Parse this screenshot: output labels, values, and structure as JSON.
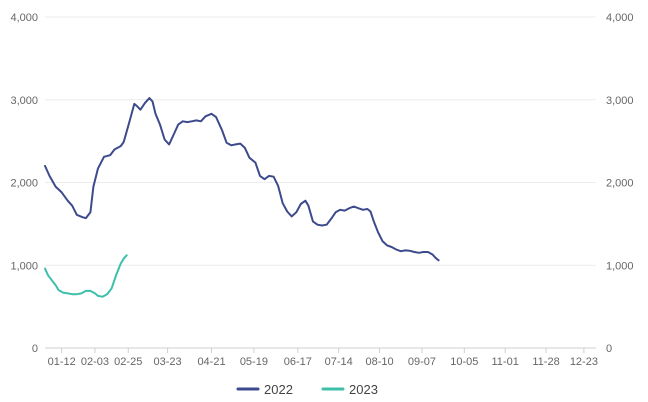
{
  "chart_data": {
    "type": "line",
    "title": "",
    "xlabel": "",
    "ylabel": "",
    "ylim": [
      0,
      4000
    ],
    "xlim": [
      1,
      365
    ],
    "grid": true,
    "legend_position": "bottom",
    "y_ticks": [
      {
        "value": 0,
        "label": "0"
      },
      {
        "value": 1000,
        "label": "1,000"
      },
      {
        "value": 2000,
        "label": "2,000"
      },
      {
        "value": 3000,
        "label": "3,000"
      },
      {
        "value": 4000,
        "label": "4,000"
      }
    ],
    "x_ticks": [
      {
        "day": 12,
        "label": "01-12"
      },
      {
        "day": 34,
        "label": "02-03"
      },
      {
        "day": 56,
        "label": "02-25"
      },
      {
        "day": 82,
        "label": "03-23"
      },
      {
        "day": 111,
        "label": "04-21"
      },
      {
        "day": 139,
        "label": "05-19"
      },
      {
        "day": 168,
        "label": "06-17"
      },
      {
        "day": 195,
        "label": "07-14"
      },
      {
        "day": 222,
        "label": "08-10"
      },
      {
        "day": 250,
        "label": "09-07"
      },
      {
        "day": 278,
        "label": "10-05"
      },
      {
        "day": 305,
        "label": "11-01"
      },
      {
        "day": 332,
        "label": "11-28"
      },
      {
        "day": 357,
        "label": "12-23"
      }
    ],
    "series": [
      {
        "name": "2022",
        "color": "#3d4a8c",
        "points": [
          [
            1,
            2200
          ],
          [
            4,
            2080
          ],
          [
            8,
            1950
          ],
          [
            12,
            1880
          ],
          [
            16,
            1780
          ],
          [
            19,
            1720
          ],
          [
            22,
            1610
          ],
          [
            26,
            1580
          ],
          [
            28,
            1570
          ],
          [
            31,
            1640
          ],
          [
            33,
            1950
          ],
          [
            36,
            2170
          ],
          [
            40,
            2310
          ],
          [
            44,
            2330
          ],
          [
            47,
            2400
          ],
          [
            51,
            2440
          ],
          [
            53,
            2490
          ],
          [
            57,
            2750
          ],
          [
            60,
            2950
          ],
          [
            62,
            2920
          ],
          [
            64,
            2880
          ],
          [
            67,
            2960
          ],
          [
            70,
            3020
          ],
          [
            72,
            2980
          ],
          [
            74,
            2830
          ],
          [
            77,
            2700
          ],
          [
            80,
            2520
          ],
          [
            83,
            2460
          ],
          [
            86,
            2580
          ],
          [
            89,
            2700
          ],
          [
            92,
            2740
          ],
          [
            95,
            2730
          ],
          [
            98,
            2740
          ],
          [
            101,
            2750
          ],
          [
            104,
            2740
          ],
          [
            107,
            2800
          ],
          [
            111,
            2830
          ],
          [
            114,
            2790
          ],
          [
            118,
            2630
          ],
          [
            121,
            2480
          ],
          [
            124,
            2450
          ],
          [
            127,
            2460
          ],
          [
            130,
            2470
          ],
          [
            133,
            2420
          ],
          [
            136,
            2300
          ],
          [
            140,
            2240
          ],
          [
            143,
            2080
          ],
          [
            146,
            2040
          ],
          [
            149,
            2080
          ],
          [
            152,
            2070
          ],
          [
            155,
            1960
          ],
          [
            158,
            1750
          ],
          [
            161,
            1650
          ],
          [
            164,
            1590
          ],
          [
            167,
            1640
          ],
          [
            170,
            1740
          ],
          [
            173,
            1780
          ],
          [
            175,
            1720
          ],
          [
            178,
            1530
          ],
          [
            181,
            1490
          ],
          [
            184,
            1480
          ],
          [
            187,
            1490
          ],
          [
            190,
            1560
          ],
          [
            193,
            1640
          ],
          [
            196,
            1670
          ],
          [
            199,
            1660
          ],
          [
            202,
            1690
          ],
          [
            205,
            1710
          ],
          [
            208,
            1690
          ],
          [
            211,
            1670
          ],
          [
            214,
            1680
          ],
          [
            216,
            1650
          ],
          [
            218,
            1540
          ],
          [
            221,
            1400
          ],
          [
            224,
            1290
          ],
          [
            227,
            1240
          ],
          [
            230,
            1220
          ],
          [
            233,
            1190
          ],
          [
            236,
            1170
          ],
          [
            239,
            1180
          ],
          [
            242,
            1175
          ],
          [
            245,
            1160
          ],
          [
            248,
            1150
          ],
          [
            251,
            1160
          ],
          [
            254,
            1160
          ],
          [
            257,
            1130
          ],
          [
            259,
            1090
          ],
          [
            261,
            1060
          ]
        ]
      },
      {
        "name": "2023",
        "color": "#3dbfaa",
        "points": [
          [
            1,
            960
          ],
          [
            3,
            880
          ],
          [
            5,
            830
          ],
          [
            8,
            760
          ],
          [
            10,
            700
          ],
          [
            13,
            670
          ],
          [
            16,
            660
          ],
          [
            19,
            650
          ],
          [
            22,
            650
          ],
          [
            25,
            660
          ],
          [
            28,
            690
          ],
          [
            31,
            690
          ],
          [
            34,
            660
          ],
          [
            36,
            630
          ],
          [
            39,
            620
          ],
          [
            42,
            650
          ],
          [
            45,
            720
          ],
          [
            48,
            880
          ],
          [
            51,
            1020
          ],
          [
            53,
            1080
          ],
          [
            55,
            1120
          ]
        ]
      }
    ]
  }
}
